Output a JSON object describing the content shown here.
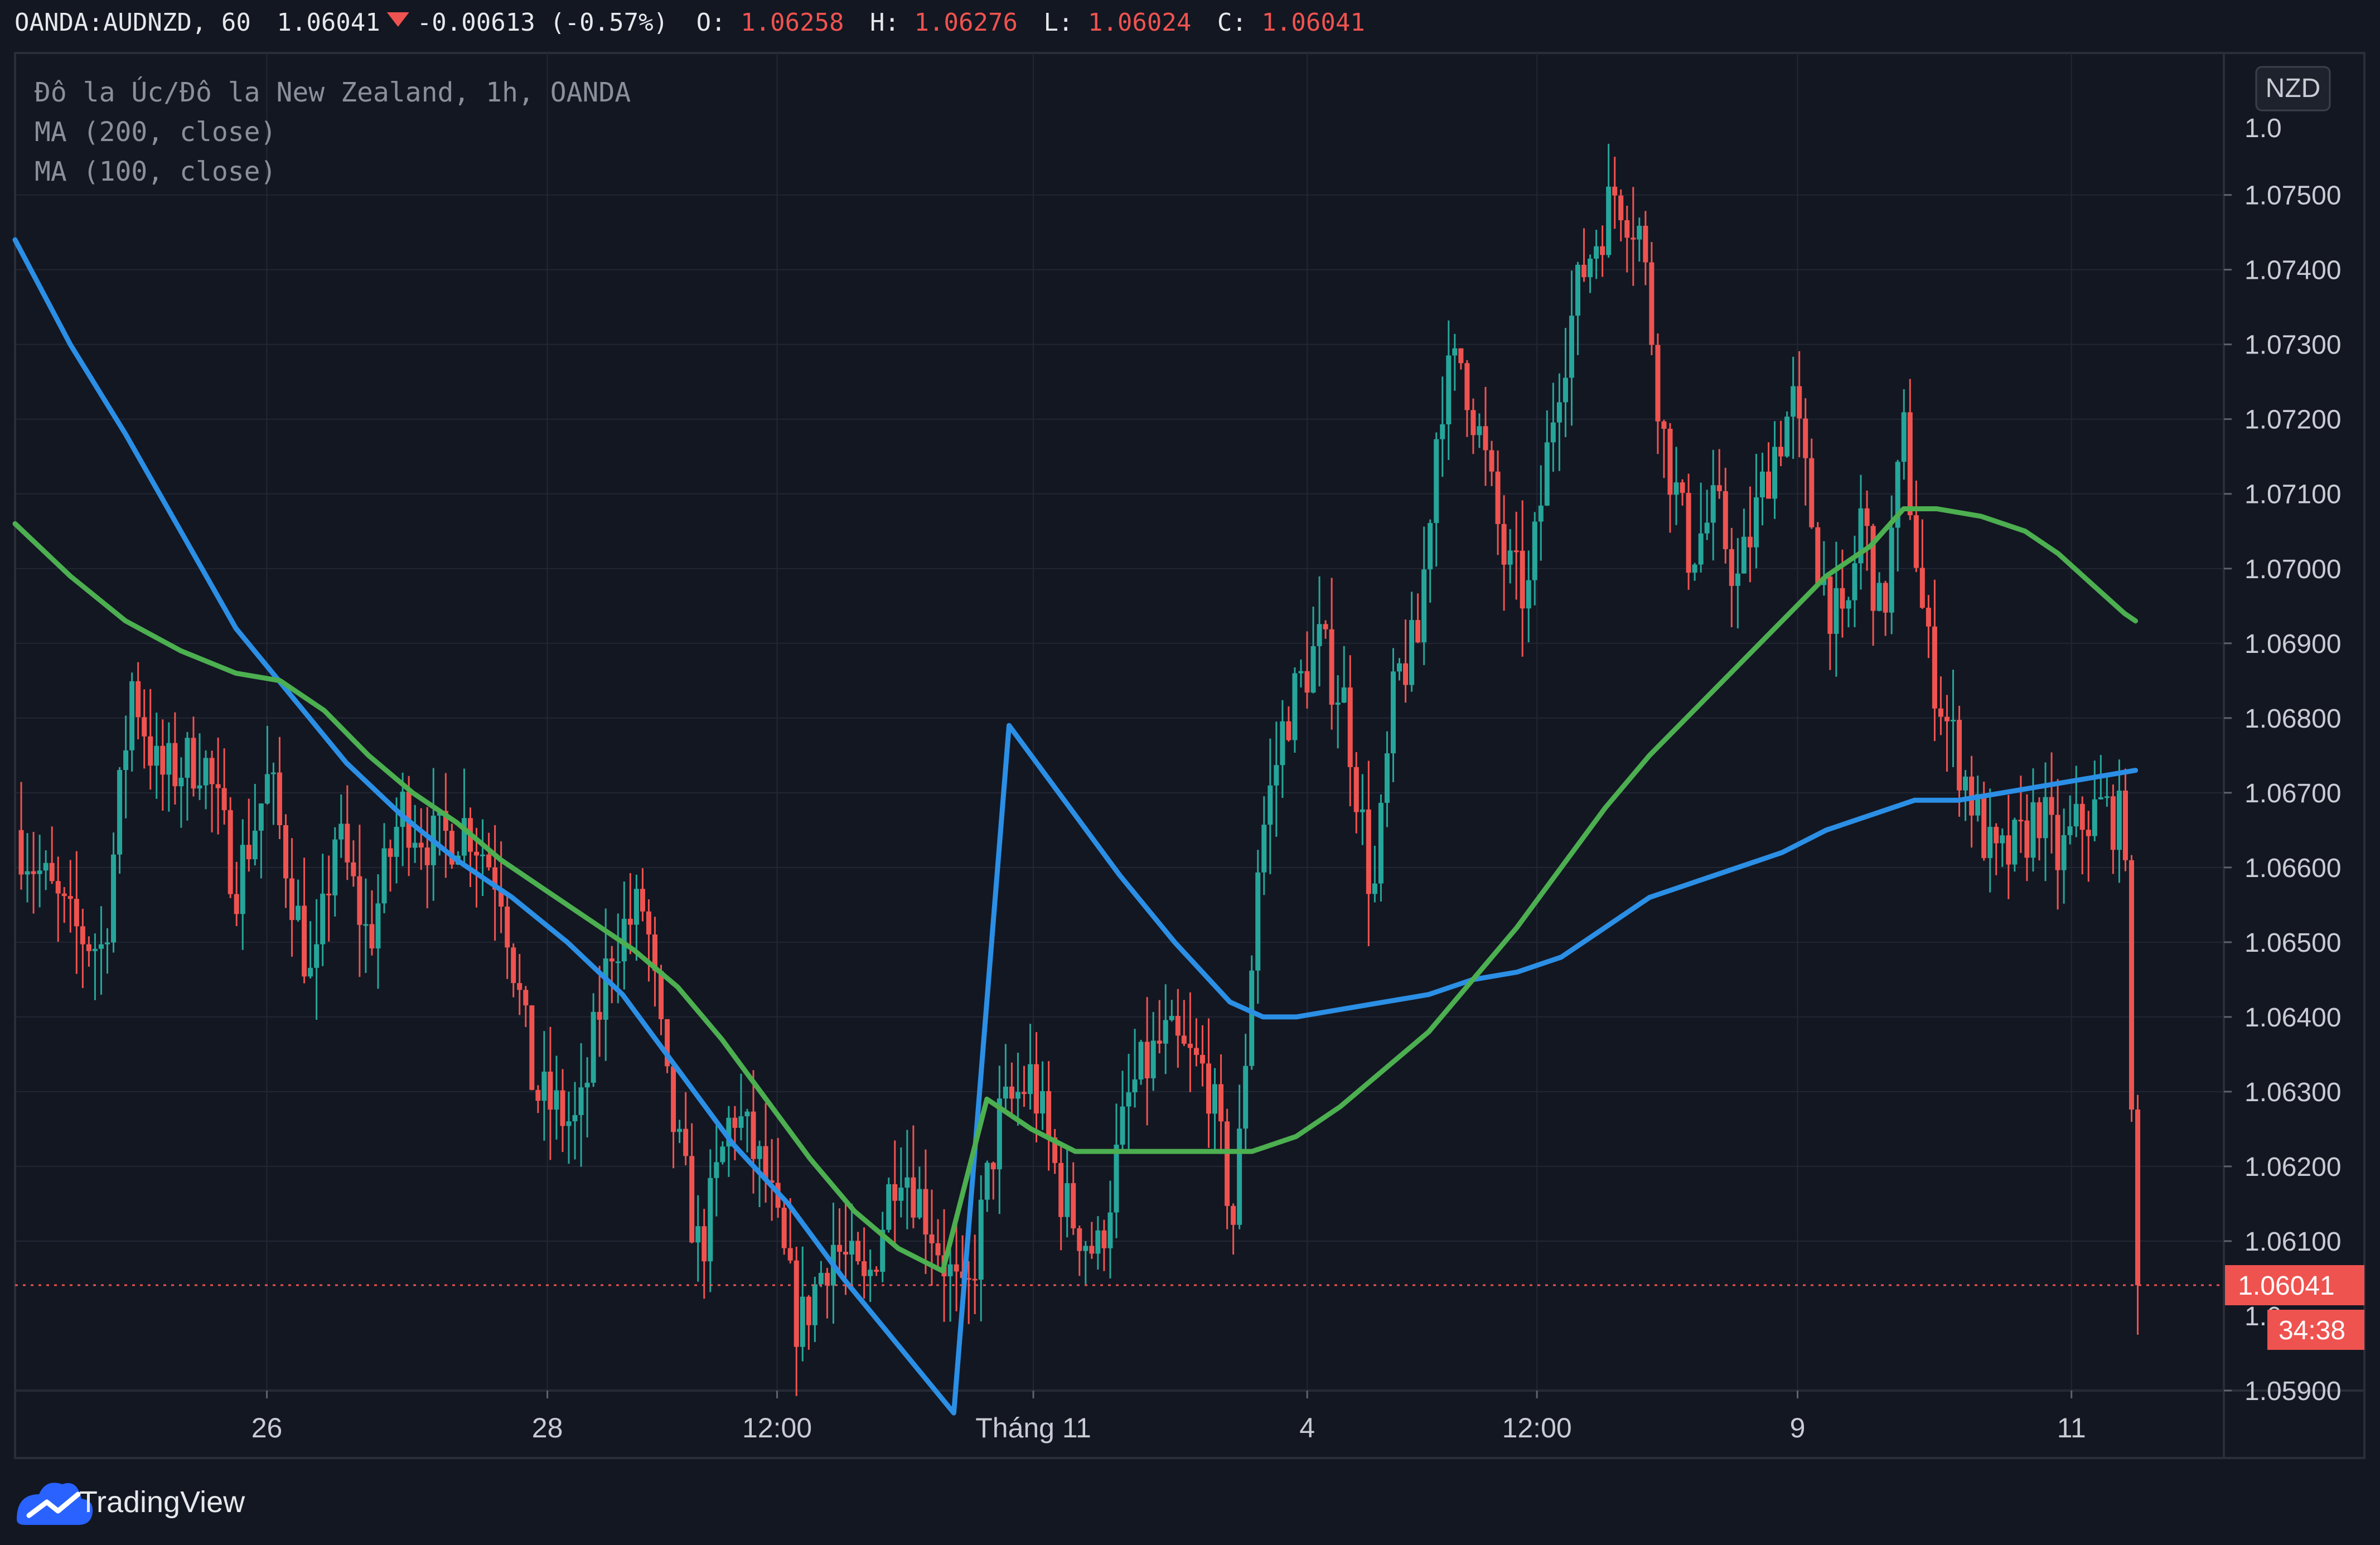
{
  "header": {
    "symbol": "OANDA:AUDNZD, 60",
    "price": "1.06041",
    "change": "-0.00613 (-0.57%)",
    "open_label": "O:",
    "open_value": "1.06258",
    "high_label": "H:",
    "high_value": "1.06276",
    "low_label": "L:",
    "low_value": "1.06024",
    "close_label": "C:",
    "close_value": "1.06041"
  },
  "legend": {
    "title": "Đô la Úc/Đô la New Zealand, 1h, OANDA",
    "ma200": "MA (200, close)",
    "ma100": "MA (100, close)"
  },
  "currency_button": "NZD",
  "last_price_tag": "1.06041",
  "countdown_tag": "34:38",
  "branding": "TradingView",
  "colors": {
    "background": "#131722",
    "grid": "#232733",
    "up": "#26a69a",
    "down": "#ef5350",
    "ma200": "#2b8fe6",
    "ma100": "#4caf50",
    "text": "#c9ccd3"
  },
  "chart_data": {
    "type": "candlestick",
    "y_axis": {
      "min": 1.059,
      "max": 1.0769,
      "ticks": [
        "1.05900",
        "1.06100",
        "1.06200",
        "1.06300",
        "1.06400",
        "1.06500",
        "1.06600",
        "1.06700",
        "1.06800",
        "1.06900",
        "1.07000",
        "1.07100",
        "1.07200",
        "1.07300",
        "1.07400",
        "1.07500"
      ],
      "partial_ticks": [
        "1.0",
        "1.0"
      ]
    },
    "x_axis": {
      "range": [
        0,
        100
      ],
      "ticks": [
        {
          "label": "26",
          "x": 11.4
        },
        {
          "label": "28",
          "x": 24.1
        },
        {
          "label": "12:00",
          "x": 34.5
        },
        {
          "label": "Tháng 11",
          "x": 46.1
        },
        {
          "label": "4",
          "x": 58.5
        },
        {
          "label": "12:00",
          "x": 68.9
        },
        {
          "label": "9",
          "x": 80.7
        },
        {
          "label": "11",
          "x": 93.1
        }
      ]
    },
    "price_anchors": [
      [
        0,
        1.0665
      ],
      [
        2.5,
        1.0652
      ],
      [
        4,
        1.0649
      ],
      [
        5.3,
        1.0685
      ],
      [
        6.5,
        1.0672
      ],
      [
        8.5,
        1.0675
      ],
      [
        10,
        1.0658
      ],
      [
        11.5,
        1.0672
      ],
      [
        13.5,
        1.0643
      ],
      [
        14.5,
        1.0665
      ],
      [
        16,
        1.065
      ],
      [
        17.5,
        1.0668
      ],
      [
        19,
        1.0663
      ],
      [
        20.5,
        1.0666
      ],
      [
        22,
        1.0658
      ],
      [
        23.5,
        1.063
      ],
      [
        25.5,
        1.0625
      ],
      [
        27,
        1.065
      ],
      [
        28.5,
        1.0655
      ],
      [
        29.5,
        1.063
      ],
      [
        31,
        1.0608
      ],
      [
        32.5,
        1.0628
      ],
      [
        34,
        1.0618
      ],
      [
        35.5,
        1.0598
      ],
      [
        37,
        1.061
      ],
      [
        38.5,
        1.0603
      ],
      [
        40,
        1.0622
      ],
      [
        41.5,
        1.0612
      ],
      [
        43,
        1.06
      ],
      [
        44.5,
        1.0626
      ],
      [
        46,
        1.0632
      ],
      [
        47.5,
        1.0615
      ],
      [
        49,
        1.0608
      ],
      [
        50.5,
        1.063
      ],
      [
        52,
        1.0637
      ],
      [
        54,
        1.0632
      ],
      [
        55.2,
        1.0612
      ],
      [
        56.3,
        1.0662
      ],
      [
        57.5,
        1.068
      ],
      [
        59,
        1.069
      ],
      [
        60.2,
        1.0682
      ],
      [
        61.5,
        1.0655
      ],
      [
        62.5,
        1.0685
      ],
      [
        63.5,
        1.069
      ],
      [
        64.5,
        1.0723
      ],
      [
        65.5,
        1.0728
      ],
      [
        66.5,
        1.0715
      ],
      [
        67.5,
        1.07
      ],
      [
        68.5,
        1.0696
      ],
      [
        69.8,
        1.0725
      ],
      [
        71,
        1.074
      ],
      [
        72.5,
        1.0751
      ],
      [
        73.6,
        1.0745
      ],
      [
        74.6,
        1.0718
      ],
      [
        75.8,
        1.0702
      ],
      [
        77,
        1.0708
      ],
      [
        78,
        1.0698
      ],
      [
        79.5,
        1.0715
      ],
      [
        80.5,
        1.0722
      ],
      [
        81.7,
        1.07
      ],
      [
        82.8,
        1.069
      ],
      [
        83.6,
        1.0708
      ],
      [
        84.5,
        1.0692
      ],
      [
        85.5,
        1.0718
      ],
      [
        86.5,
        1.069
      ],
      [
        87.4,
        1.068
      ],
      [
        88.5,
        1.067
      ],
      [
        89.6,
        1.066
      ],
      [
        90.8,
        1.0663
      ],
      [
        91.6,
        1.0668
      ],
      [
        92.5,
        1.0661
      ],
      [
        93.5,
        1.0666
      ],
      [
        94.5,
        1.0668
      ],
      [
        95.6,
        1.0665
      ],
      [
        95.8,
        1.0625
      ],
      [
        96.1,
        1.0604
      ]
    ],
    "series": [
      {
        "name": "MA (200, close)",
        "points": [
          [
            0,
            1.0744
          ],
          [
            2.5,
            1.073
          ],
          [
            5,
            1.0718
          ],
          [
            7.5,
            1.0705
          ],
          [
            10,
            1.0692
          ],
          [
            12.5,
            1.0683
          ],
          [
            15,
            1.0674
          ],
          [
            17.5,
            1.0667
          ],
          [
            20,
            1.0661
          ],
          [
            22.5,
            1.0656
          ],
          [
            25,
            1.065
          ],
          [
            27.5,
            1.0643
          ],
          [
            30,
            1.0633
          ],
          [
            32.5,
            1.0623
          ],
          [
            35,
            1.0615
          ],
          [
            37.5,
            1.0605
          ],
          [
            40,
            1.0596
          ],
          [
            42.5,
            1.0587
          ],
          [
            45,
            1.0679
          ],
          [
            47.5,
            1.0669
          ],
          [
            50,
            1.0659
          ],
          [
            52.5,
            1.065
          ],
          [
            55,
            1.0642
          ],
          [
            56.5,
            1.064
          ],
          [
            58,
            1.064
          ],
          [
            60,
            1.0641
          ],
          [
            62,
            1.0642
          ],
          [
            64,
            1.0643
          ],
          [
            66,
            1.0645
          ],
          [
            68,
            1.0646
          ],
          [
            70,
            1.0648
          ],
          [
            72,
            1.0652
          ],
          [
            74,
            1.0656
          ],
          [
            76,
            1.0658
          ],
          [
            78,
            1.066
          ],
          [
            80,
            1.0662
          ],
          [
            82,
            1.0665
          ],
          [
            84,
            1.0667
          ],
          [
            86,
            1.0669
          ],
          [
            88,
            1.0669
          ],
          [
            90,
            1.067
          ],
          [
            92,
            1.0671
          ],
          [
            94,
            1.0672
          ],
          [
            96,
            1.0673
          ]
        ]
      },
      {
        "name": "MA (100, close)",
        "points": [
          [
            0,
            1.0706
          ],
          [
            2.5,
            1.0699
          ],
          [
            5,
            1.0693
          ],
          [
            7.5,
            1.0689
          ],
          [
            10,
            1.0686
          ],
          [
            12,
            1.0685
          ],
          [
            14,
            1.0681
          ],
          [
            16,
            1.0675
          ],
          [
            18,
            1.067
          ],
          [
            20,
            1.0666
          ],
          [
            22,
            1.0661
          ],
          [
            24,
            1.0657
          ],
          [
            26,
            1.0653
          ],
          [
            28,
            1.0649
          ],
          [
            30,
            1.0644
          ],
          [
            32,
            1.0637
          ],
          [
            34,
            1.0629
          ],
          [
            36,
            1.0621
          ],
          [
            38,
            1.0614
          ],
          [
            40,
            1.0609
          ],
          [
            42,
            1.0606
          ],
          [
            44,
            1.0629
          ],
          [
            46,
            1.0625
          ],
          [
            48,
            1.0622
          ],
          [
            50,
            1.0622
          ],
          [
            52,
            1.0622
          ],
          [
            54,
            1.0622
          ],
          [
            56,
            1.0622
          ],
          [
            58,
            1.0624
          ],
          [
            60,
            1.0628
          ],
          [
            62,
            1.0633
          ],
          [
            64,
            1.0638
          ],
          [
            66,
            1.0645
          ],
          [
            68,
            1.0652
          ],
          [
            70,
            1.066
          ],
          [
            72,
            1.0668
          ],
          [
            74,
            1.0675
          ],
          [
            76,
            1.0681
          ],
          [
            78,
            1.0687
          ],
          [
            80,
            1.0693
          ],
          [
            82,
            1.0699
          ],
          [
            84,
            1.0703
          ],
          [
            85.5,
            1.0708
          ],
          [
            87,
            1.0708
          ],
          [
            89,
            1.0707
          ],
          [
            91,
            1.0705
          ],
          [
            92.5,
            1.0702
          ],
          [
            94,
            1.0698
          ],
          [
            95.5,
            1.0694
          ],
          [
            96,
            1.0693
          ]
        ]
      }
    ]
  }
}
